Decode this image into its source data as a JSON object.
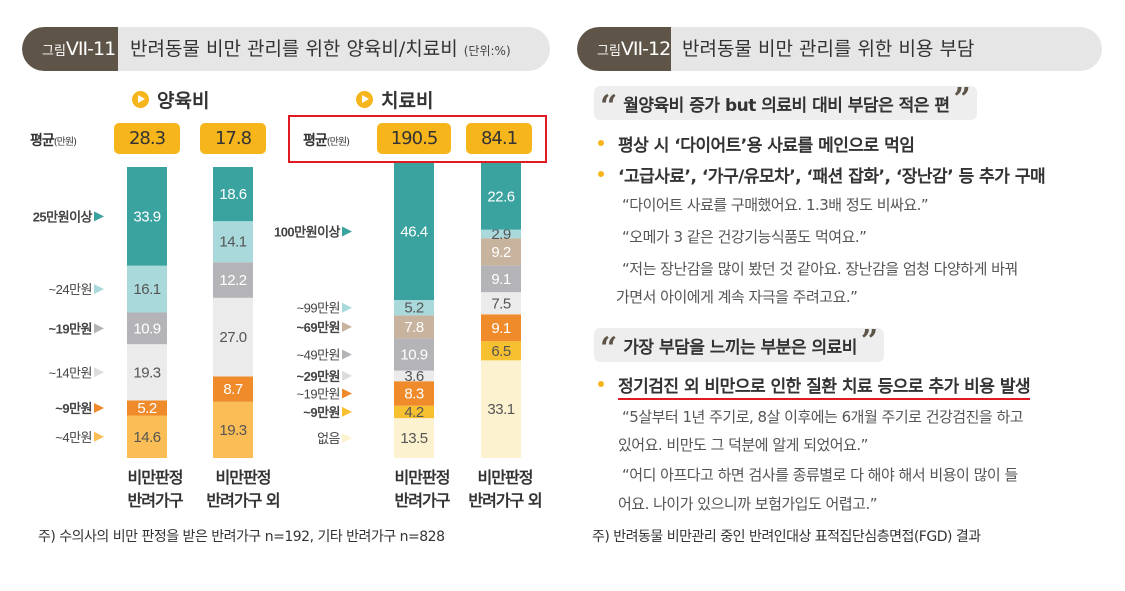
{
  "figure_left": {
    "prefix": "그림",
    "number": "VII-11",
    "title": "반려동물 비만 관리를 위한 양육비/치료비",
    "unit": "(단위:%)"
  },
  "figure_right": {
    "prefix": "그림",
    "number": "VII-12",
    "title": "반려동물 비만 관리를 위한 비용 부담"
  },
  "chart_data": [
    {
      "type": "bar",
      "stacked": true,
      "title": "양육비",
      "average_label": "평균",
      "average_unit": "(만원)",
      "categories": [
        "비만판정 반려가구",
        "비만판정 반려가구 외"
      ],
      "averages": [
        "28.3",
        "17.8"
      ],
      "series": [
        {
          "name": "~4만원",
          "values": [
            14.6,
            19.3
          ],
          "color": "#fbbd55"
        },
        {
          "name": "~9만원",
          "values": [
            5.2,
            8.7
          ],
          "color": "#ef8b2b"
        },
        {
          "name": "~14만원",
          "values": [
            19.3,
            27.0
          ],
          "color": "#ebebeb"
        },
        {
          "name": "~19만원",
          "values": [
            10.9,
            12.2
          ],
          "color": "#b4b4b8"
        },
        {
          "name": "~24만원",
          "values": [
            16.1,
            14.1
          ],
          "color": "#a9d9da"
        },
        {
          "name": "25만원이상",
          "values": [
            33.9,
            18.6
          ],
          "color": "#3ba39f"
        }
      ],
      "value_labels": [
        [
          "14.6",
          "5.2",
          "19.3",
          "10.9",
          "16.1",
          "33.9"
        ],
        [
          "19.3",
          "8.7",
          "27.0",
          "12.2",
          "14.1",
          "18.6"
        ]
      ]
    },
    {
      "type": "bar",
      "stacked": true,
      "title": "치료비",
      "average_label": "평균",
      "average_unit": "(만원)",
      "categories": [
        "비만판정 반려가구",
        "비만판정 반려가구 외"
      ],
      "averages": [
        "190.5",
        "84.1"
      ],
      "series": [
        {
          "name": "없음",
          "values": [
            13.5,
            33.1
          ],
          "color": "#fdf2cf"
        },
        {
          "name": "~9만원",
          "values": [
            4.2,
            6.5
          ],
          "color": "#f7c031"
        },
        {
          "name": "~19만원",
          "values": [
            8.3,
            9.1
          ],
          "color": "#ef8b2b"
        },
        {
          "name": "~29만원",
          "values": [
            3.6,
            7.5
          ],
          "color": "#ebebeb"
        },
        {
          "name": "~49만원",
          "values": [
            10.9,
            9.1
          ],
          "color": "#b4b4b8"
        },
        {
          "name": "~69만원",
          "values": [
            7.8,
            9.2
          ],
          "color": "#c7b39e"
        },
        {
          "name": "~99만원",
          "values": [
            5.2,
            2.9
          ],
          "color": "#a9d9da"
        },
        {
          "name": "100만원이상",
          "values": [
            46.4,
            22.6
          ],
          "color": "#3ba39f"
        }
      ],
      "value_labels": [
        [
          "13.5",
          "4.2",
          "8.3",
          "3.6",
          "10.9",
          "7.8",
          "5.2",
          "46.4"
        ],
        [
          "33.1",
          "6.5",
          "9.1",
          "7.5",
          "9.1",
          "9.2",
          "2.9",
          "22.6"
        ]
      ]
    }
  ],
  "category_labels": [
    {
      "line1": "비만판정",
      "line2": "반려가구"
    },
    {
      "line1": "비만판정",
      "line2": "반려가구 외"
    }
  ],
  "note_left": "주) 수의사의 비만 판정을 받은 반려가구 n=192, 기타 반려가구 n=828",
  "section1": {
    "heading": "월양육비 증가 but 의료비 대비 부담은 적은 편",
    "bullets": [
      "평상 시 ‘다이어트’용 사료를 메인으로 먹임",
      "‘고급사료’, ‘가구/유모차’, ‘패션 잡화’, ‘장난감’ 등 추가 구매"
    ],
    "quotes": [
      "“다이어트 사료를 구매했어요. 1.3배 정도 비싸요.”",
      "“오메가 3 같은 건강기능식품도 먹여요.”",
      "“저는 장난감을 많이 봤던 것 같아요. 장난감을 엄청 다양하게 바꿔",
      "가면서 아이에게 계속 자극을 주려고요.”"
    ]
  },
  "section2": {
    "heading": "가장 부담을 느끼는 부분은 의료비",
    "bullet": "정기검진 외 비만으로 인한 질환 치료 등으로 추가 비용 발생",
    "quotes": [
      "“5살부터 1년 주기로, 8살 이후에는 6개월 주기로 건강검진을 하고",
      "있어요. 비만도 그 덕분에 알게 되었어요.”",
      "“어디 아프다고 하면 검사를 종류별로 다 해야 해서 비용이 많이 들",
      "어요. 나이가 있으니까 보험가입도 어렵고.”"
    ]
  },
  "note_right": "주) 반려동물 비만관리 중인 반려인대상 표적집단심층면접(FGD) 결과",
  "colors": {
    "accent": "#f7b51c",
    "header_dark": "#5e5448",
    "highlight_red": "#e01a22"
  }
}
